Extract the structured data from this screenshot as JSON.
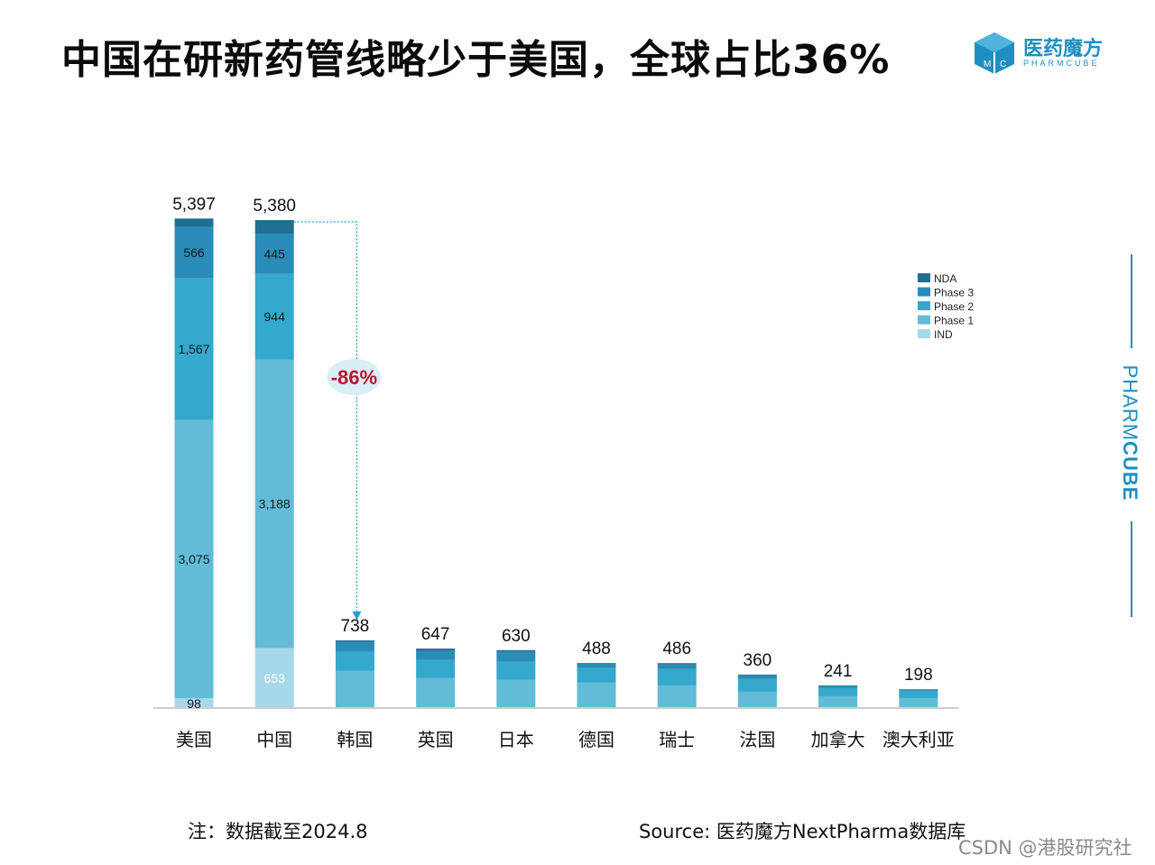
{
  "title": "中国在研新药管线略少于美国，全球占比36%",
  "brand": {
    "cn": "医药魔方",
    "en": "PHARMCUBE",
    "side_light": "PHARM",
    "side_bold": "CUBE",
    "logo_letters": [
      "M",
      "C"
    ]
  },
  "colors": {
    "NDA": "#1f6f93",
    "Phase 3": "#2a8cb8",
    "Phase 2": "#35a8cd",
    "Phase 1": "#62bcd8",
    "IND": "#a6d8ea",
    "brand": "#1e8fc0",
    "annotation": "#c0122c"
  },
  "chart_data": {
    "type": "bar",
    "stacked": true,
    "categories": [
      "美国",
      "中国",
      "韩国",
      "英国",
      "日本",
      "德国",
      "瑞士",
      "法国",
      "加拿大",
      "澳大利亚"
    ],
    "totals": [
      5397,
      5380,
      738,
      647,
      630,
      488,
      486,
      360,
      241,
      198
    ],
    "total_labels": [
      "5,397",
      "5,380",
      "738",
      "647",
      "630",
      "488",
      "486",
      "360",
      "241",
      "198"
    ],
    "series": [
      {
        "name": "IND",
        "values": [
          98,
          653,
          0,
          0,
          0,
          0,
          0,
          0,
          0,
          0
        ]
      },
      {
        "name": "Phase 1",
        "values": [
          3075,
          3188,
          400,
          320,
          300,
          270,
          240,
          170,
          120,
          100
        ]
      },
      {
        "name": "Phase 2",
        "values": [
          1567,
          944,
          210,
          200,
          200,
          160,
          180,
          140,
          90,
          80
        ]
      },
      {
        "name": "Phase 3",
        "values": [
          566,
          445,
          110,
          100,
          110,
          50,
          50,
          40,
          25,
          15
        ]
      },
      {
        "name": "NDA",
        "values": [
          91,
          150,
          18,
          27,
          20,
          8,
          16,
          10,
          6,
          3
        ]
      }
    ],
    "segment_labels": {
      "美国": {
        "IND": "98",
        "Phase 1": "3,075",
        "Phase 2": "1,567",
        "Phase 3": "566"
      },
      "中国": {
        "IND": "653",
        "Phase 1": "3,188",
        "Phase 2": "944",
        "Phase 3": "445"
      }
    },
    "legend": [
      "NDA",
      "Phase 3",
      "Phase 2",
      "Phase 1",
      "IND"
    ],
    "legend_position": "top-right",
    "annotation": {
      "text": "-86%",
      "from": "中国",
      "to": "韩国"
    },
    "ylim": [
      0,
      5400
    ],
    "grid": false
  },
  "note": "注：数据截至2024.8",
  "source": "Source: 医药魔方NextPharma数据库",
  "watermark": "CSDN @港股研究社"
}
